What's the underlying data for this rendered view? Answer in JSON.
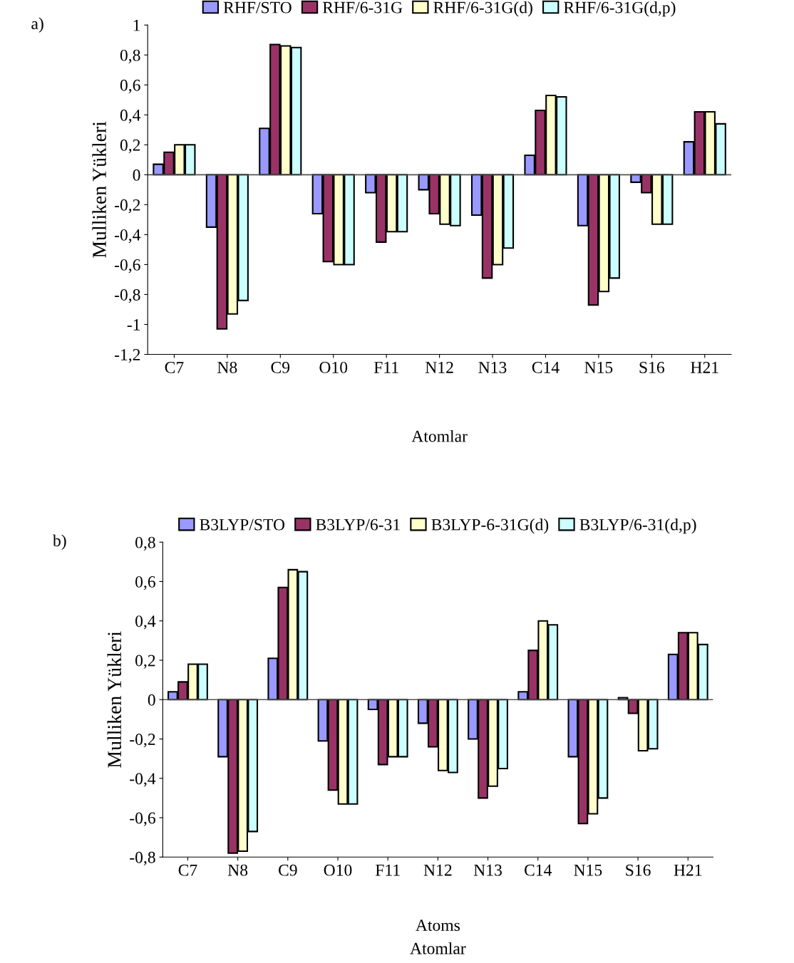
{
  "chart_data": [
    {
      "type": "bar",
      "ylabel": "Mulliken Yükleri",
      "xlabel": "Atomlar",
      "annotations": [
        "a)"
      ],
      "legend": "top",
      "grid": false,
      "ref_lines": [
        {
          "axis": "y",
          "value": 0
        }
      ],
      "categories": [
        "C7",
        "N8",
        "C9",
        "O10",
        "F11",
        "N12",
        "N13",
        "C14",
        "N15",
        "S16",
        "H21"
      ],
      "ylim": [
        -1.2,
        1
      ],
      "yticks": [
        {
          "value": -1.2,
          "label": "-1,2"
        },
        {
          "value": -1,
          "label": "-1"
        },
        {
          "value": -0.8,
          "label": "-0,8"
        },
        {
          "value": -0.6,
          "label": "-0,6"
        },
        {
          "value": -0.4,
          "label": "-0,4"
        },
        {
          "value": -0.2,
          "label": "-0,2"
        },
        0,
        {
          "value": 0.2,
          "label": "0,2"
        },
        {
          "value": 0.4,
          "label": "0,4"
        },
        {
          "value": 0.6,
          "label": "0,6"
        },
        {
          "value": 0.8,
          "label": "0,8"
        },
        1
      ],
      "series": [
        {
          "name": "RHF/STO",
          "color": "#9999ff",
          "values": [
            0.07,
            -0.35,
            0.31,
            -0.26,
            -0.12,
            -0.1,
            -0.27,
            0.13,
            -0.34,
            -0.05,
            0.22
          ]
        },
        {
          "name": "RHF/6-31G",
          "color": "#993366",
          "values": [
            0.15,
            -1.03,
            0.87,
            -0.58,
            -0.45,
            -0.26,
            -0.69,
            0.43,
            -0.87,
            -0.12,
            0.42
          ]
        },
        {
          "name": "RHF/6-31G(d)",
          "color": "#ffffcc",
          "values": [
            0.2,
            -0.93,
            0.86,
            -0.6,
            -0.38,
            -0.33,
            -0.6,
            0.53,
            -0.78,
            -0.33,
            0.42
          ]
        },
        {
          "name": "RHF/6-31G(d,p)",
          "color": "#ccffff",
          "values": [
            0.2,
            -0.84,
            0.85,
            -0.6,
            -0.38,
            -0.34,
            -0.49,
            0.52,
            -0.69,
            -0.33,
            0.34
          ]
        }
      ]
    },
    {
      "type": "bar",
      "ylabel": "Mulliken Yükleri",
      "xlabel": "Atoms",
      "annotations": [
        "b)",
        "Atomlar"
      ],
      "legend": "top",
      "grid": false,
      "ref_lines": [
        {
          "axis": "y",
          "value": 0
        }
      ],
      "categories": [
        "C7",
        "N8",
        "C9",
        "O10",
        "F11",
        "N12",
        "N13",
        "C14",
        "N15",
        "S16",
        "H21"
      ],
      "ylim": [
        -0.8,
        0.8
      ],
      "yticks": [
        {
          "value": -0.8,
          "label": "-0,8"
        },
        {
          "value": -0.6,
          "label": "-0,6"
        },
        {
          "value": -0.4,
          "label": "-0,4"
        },
        {
          "value": -0.2,
          "label": "-0,2"
        },
        0,
        {
          "value": 0.2,
          "label": "0,2"
        },
        {
          "value": 0.4,
          "label": "0,4"
        },
        {
          "value": 0.6,
          "label": "0,6"
        },
        {
          "value": 0.8,
          "label": "0,8"
        }
      ],
      "series": [
        {
          "name": "B3LYP/STO",
          "color": "#9999ff",
          "values": [
            0.04,
            -0.29,
            0.21,
            -0.21,
            -0.05,
            -0.12,
            -0.2,
            0.04,
            -0.29,
            0.01,
            0.23
          ]
        },
        {
          "name": "B3LYP/6-31",
          "color": "#993366",
          "values": [
            0.09,
            -0.78,
            0.57,
            -0.46,
            -0.33,
            -0.24,
            -0.5,
            0.25,
            -0.63,
            -0.07,
            0.34
          ]
        },
        {
          "name": "B3LYP-6-31G(d)",
          "color": "#ffffcc",
          "values": [
            0.18,
            -0.77,
            0.66,
            -0.53,
            -0.29,
            -0.36,
            -0.44,
            0.4,
            -0.58,
            -0.26,
            0.34
          ]
        },
        {
          "name": "B3LYP/6-31(d,p)",
          "color": "#ccffff",
          "values": [
            0.18,
            -0.67,
            0.65,
            -0.53,
            -0.29,
            -0.37,
            -0.35,
            0.38,
            -0.5,
            -0.25,
            0.28
          ]
        }
      ]
    }
  ]
}
